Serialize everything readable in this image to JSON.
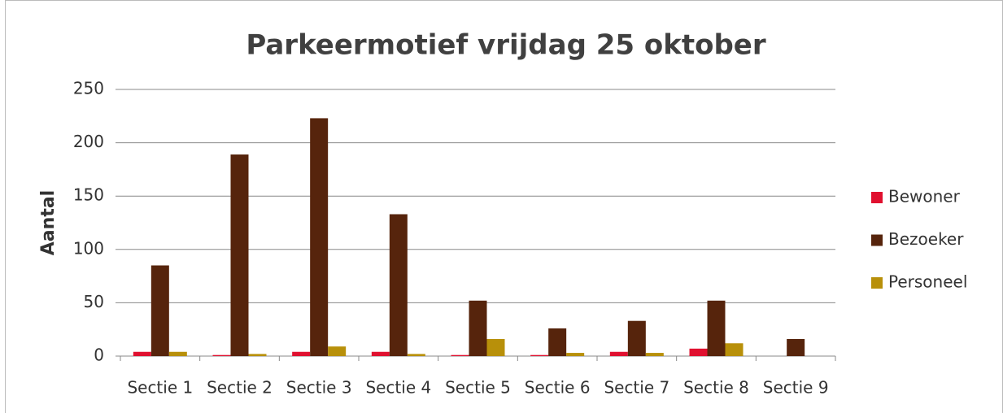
{
  "chart_data": {
    "type": "bar",
    "title": "Parkeermotief vrijdag 25 oktober",
    "y_label": "Aantal",
    "categories": [
      "Sectie 1",
      "Sectie 2",
      "Sectie 3",
      "Sectie 4",
      "Sectie 5",
      "Sectie 6",
      "Sectie 7",
      "Sectie 8",
      "Sectie 9"
    ],
    "series": [
      {
        "name": "Bewoner",
        "color": "#e0102f",
        "values": [
          4,
          1,
          4,
          4,
          1,
          1,
          4,
          7,
          0
        ]
      },
      {
        "name": "Bezoeker",
        "color": "#56240c",
        "values": [
          85,
          189,
          223,
          133,
          52,
          26,
          33,
          52,
          16
        ]
      },
      {
        "name": "Personeel",
        "color": "#b8900a",
        "values": [
          4,
          2,
          9,
          2,
          16,
          3,
          3,
          12,
          0
        ]
      }
    ],
    "ylim": [
      0,
      250
    ],
    "yticks": [
      0,
      50,
      100,
      150,
      200,
      250
    ],
    "grid": true,
    "legend": "right"
  }
}
